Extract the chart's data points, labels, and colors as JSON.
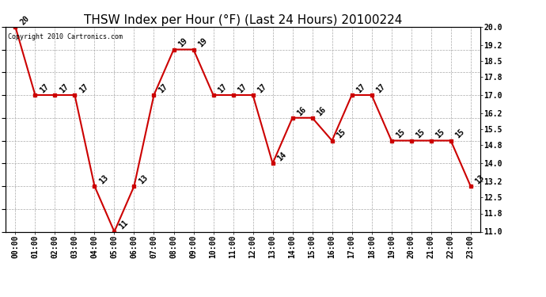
{
  "title": "THSW Index per Hour (°F) (Last 24 Hours) 20100224",
  "copyright": "Copyright 2010 Cartronics.com",
  "hours": [
    "00:00",
    "01:00",
    "02:00",
    "03:00",
    "04:00",
    "05:00",
    "06:00",
    "07:00",
    "08:00",
    "09:00",
    "10:00",
    "11:00",
    "12:00",
    "13:00",
    "14:00",
    "15:00",
    "16:00",
    "17:00",
    "18:00",
    "19:00",
    "20:00",
    "21:00",
    "22:00",
    "23:00"
  ],
  "values": [
    20,
    17,
    17,
    17,
    13,
    11,
    13,
    17,
    19,
    19,
    17,
    17,
    17,
    14,
    16,
    16,
    15,
    17,
    17,
    15,
    15,
    15,
    15,
    13
  ],
  "line_color": "#cc0000",
  "marker_color": "#cc0000",
  "bg_color": "#ffffff",
  "plot_bg_color": "#ffffff",
  "grid_color": "#aaaaaa",
  "title_fontsize": 11,
  "copyright_fontsize": 6,
  "label_fontsize": 7,
  "tick_fontsize": 7,
  "ylim_min": 11.0,
  "ylim_max": 20.0,
  "yticks_right": [
    11.0,
    11.8,
    12.5,
    13.2,
    14.0,
    14.8,
    15.5,
    16.2,
    17.0,
    17.8,
    18.5,
    19.2,
    20.0
  ]
}
